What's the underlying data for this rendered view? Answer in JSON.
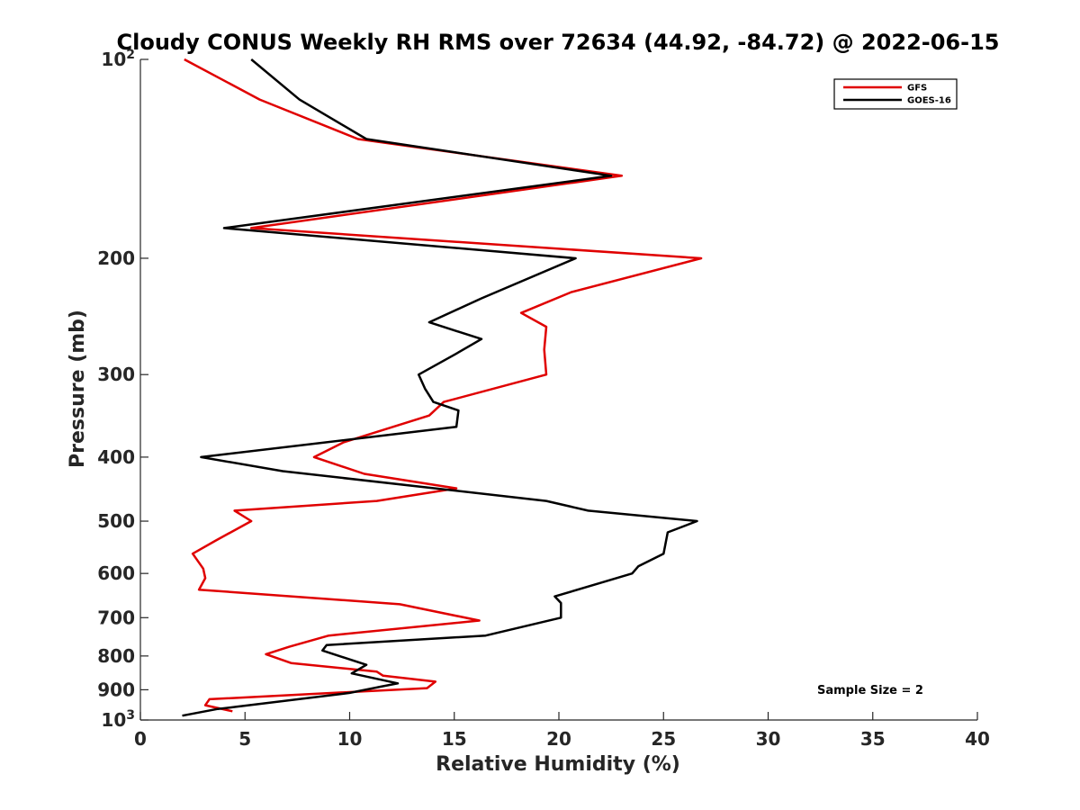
{
  "chart_data": {
    "type": "line",
    "title": "Cloudy CONUS Weekly RH RMS over 72634 (44.92, -84.72) @ 2022-06-15",
    "xlabel": "Relative Humidity (%)",
    "ylabel": "Pressure (mb)",
    "xlim": [
      0,
      40
    ],
    "ylim": [
      100,
      1000
    ],
    "yscale": "log",
    "y_reversed": true,
    "grid": false,
    "legend_position": "top-right",
    "x_ticks": [
      "0",
      "5",
      "10",
      "15",
      "20",
      "25",
      "30",
      "35",
      "40"
    ],
    "y_ticks": [
      {
        "value": 100,
        "base": "10",
        "exp": "2"
      },
      {
        "value": 200,
        "label": "200"
      },
      {
        "value": 300,
        "label": "300"
      },
      {
        "value": 400,
        "label": "400"
      },
      {
        "value": 500,
        "label": "500"
      },
      {
        "value": 600,
        "label": "600"
      },
      {
        "value": 700,
        "label": "700"
      },
      {
        "value": 800,
        "label": "800"
      },
      {
        "value": 900,
        "label": "900"
      },
      {
        "value": 1000,
        "base": "10",
        "exp": "3"
      }
    ],
    "annotation": "Sample Size = 2",
    "series": [
      {
        "name": "GFS",
        "color": "#e00000",
        "points": [
          [
            2.1,
            100
          ],
          [
            5.7,
            115
          ],
          [
            10.4,
            132
          ],
          [
            23.0,
            150
          ],
          [
            5.3,
            180
          ],
          [
            26.8,
            200
          ],
          [
            20.6,
            225
          ],
          [
            18.2,
            242
          ],
          [
            19.4,
            254
          ],
          [
            19.3,
            275
          ],
          [
            19.4,
            300
          ],
          [
            14.5,
            330
          ],
          [
            13.8,
            346
          ],
          [
            9.7,
            380
          ],
          [
            8.3,
            400
          ],
          [
            10.7,
            424
          ],
          [
            15.1,
            446
          ],
          [
            11.3,
            466
          ],
          [
            4.5,
            482
          ],
          [
            5.3,
            500
          ],
          [
            3.6,
            535
          ],
          [
            2.5,
            560
          ],
          [
            3.0,
            590
          ],
          [
            3.1,
            610
          ],
          [
            2.8,
            635
          ],
          [
            12.4,
            668
          ],
          [
            16.2,
            707
          ],
          [
            9.0,
            745
          ],
          [
            7.1,
            775
          ],
          [
            6.0,
            795
          ],
          [
            7.2,
            820
          ],
          [
            11.3,
            845
          ],
          [
            11.6,
            857
          ],
          [
            14.1,
            875
          ],
          [
            13.7,
            895
          ],
          [
            3.3,
            930
          ],
          [
            3.1,
            950
          ],
          [
            4.4,
            970
          ]
        ]
      },
      {
        "name": "GOES-16",
        "color": "#000000",
        "points": [
          [
            5.3,
            100
          ],
          [
            7.6,
            115
          ],
          [
            10.8,
            132
          ],
          [
            22.5,
            150
          ],
          [
            4.0,
            180
          ],
          [
            20.8,
            200
          ],
          [
            16.3,
            230
          ],
          [
            13.8,
            250
          ],
          [
            16.3,
            265
          ],
          [
            15.0,
            280
          ],
          [
            13.3,
            300
          ],
          [
            13.6,
            315
          ],
          [
            14.0,
            330
          ],
          [
            15.2,
            340
          ],
          [
            15.1,
            360
          ],
          [
            2.9,
            400
          ],
          [
            6.8,
            420
          ],
          [
            19.4,
            466
          ],
          [
            21.4,
            482
          ],
          [
            26.6,
            500
          ],
          [
            25.2,
            520
          ],
          [
            25.0,
            560
          ],
          [
            23.8,
            585
          ],
          [
            23.5,
            600
          ],
          [
            22.0,
            620
          ],
          [
            19.8,
            650
          ],
          [
            20.1,
            665
          ],
          [
            20.1,
            700
          ],
          [
            16.5,
            745
          ],
          [
            8.9,
            770
          ],
          [
            8.7,
            785
          ],
          [
            10.8,
            825
          ],
          [
            10.1,
            850
          ],
          [
            12.3,
            880
          ],
          [
            11.5,
            890
          ],
          [
            10.0,
            910
          ],
          [
            4.6,
            955
          ],
          [
            3.7,
            962
          ],
          [
            2.0,
            985
          ]
        ]
      }
    ]
  }
}
